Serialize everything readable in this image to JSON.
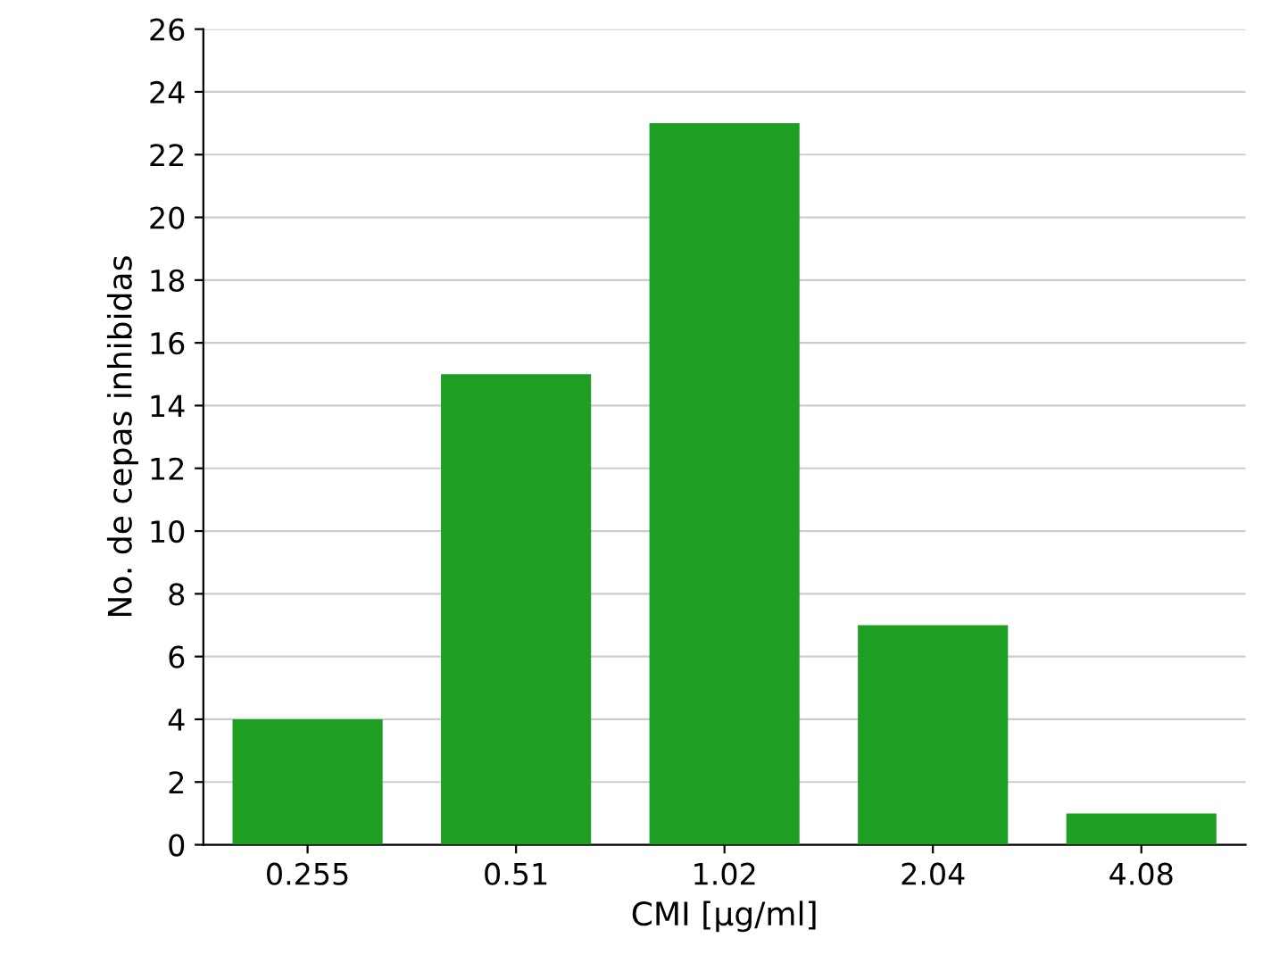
{
  "chart_data": {
    "type": "bar",
    "xlabel": "CMI [µg/ml]",
    "ylabel": "No. de cepas inhibidas",
    "categories": [
      "0.255",
      "0.51",
      "1.02",
      "2.04",
      "4.08"
    ],
    "values": [
      4,
      15,
      23,
      7,
      1
    ],
    "color": "#1e9e22",
    "ylim": [
      0,
      26
    ],
    "yticks": [
      0,
      2,
      4,
      6,
      8,
      10,
      12,
      14,
      16,
      18,
      20,
      22,
      24,
      26
    ],
    "grid": "y"
  }
}
